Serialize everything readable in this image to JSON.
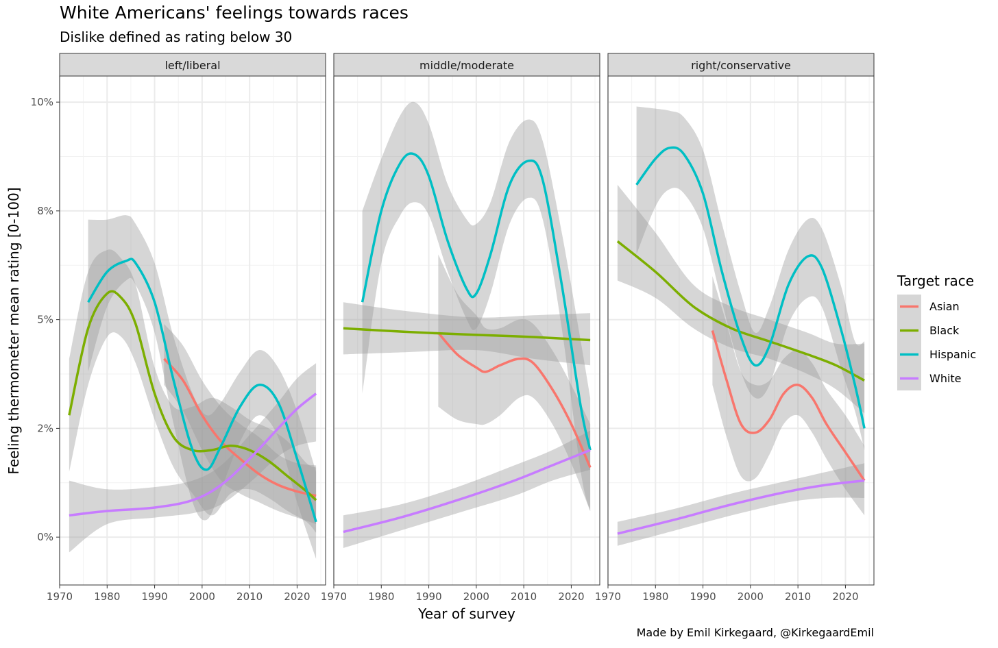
{
  "title": "White Americans' feelings towards races",
  "subtitle": "Dislike defined as rating below 30",
  "caption": "Made by Emil Kirkegaard, @KirkegaardEmil",
  "chart_data": {
    "type": "line",
    "xlabel": "Year of survey",
    "ylabel": "Feeling thermometer mean rating [0-100]",
    "xlim": [
      1970,
      2026
    ],
    "ylim": [
      -1.1,
      10.6
    ],
    "x_ticks": [
      "1970",
      "1980",
      "1990",
      "2000",
      "2010",
      "2020"
    ],
    "y_ticks": [
      "0%",
      "2%",
      "5%",
      "8%",
      "10%"
    ],
    "y_tick_values": [
      0,
      2.5,
      5,
      7.5,
      10
    ],
    "grid": true,
    "legend": {
      "title": "Target race",
      "placement": "right"
    },
    "colors": {
      "Asian": "#F8766D",
      "Black": "#7CAE00",
      "Hispanic": "#00BFC4",
      "White": "#C77CFF"
    },
    "panels": [
      {
        "label": "left/liberal",
        "series": [
          {
            "name": "Asian",
            "x": [
              1992,
              1996,
              2000,
              2004,
              2008,
              2012,
              2016,
              2020,
              2024
            ],
            "y": [
              4.1,
              3.6,
              2.8,
              2.2,
              1.8,
              1.45,
              1.2,
              1.05,
              0.95
            ],
            "lo": [
              3.5,
              2.9,
              2.0,
              1.3,
              1.0,
              0.8,
              0.6,
              0.45,
              0.3
            ],
            "hi": [
              4.9,
              4.4,
              3.6,
              3.0,
              2.6,
              2.3,
              1.9,
              1.7,
              1.65
            ]
          },
          {
            "name": "Black",
            "x": [
              1972,
              1976,
              1980,
              1983,
              1986,
              1990,
              1994,
              1998,
              2002,
              2006,
              2010,
              2014,
              2018,
              2022,
              2024
            ],
            "y": [
              2.8,
              4.8,
              5.6,
              5.5,
              4.9,
              3.3,
              2.3,
              2.0,
              2.0,
              2.1,
              2.0,
              1.75,
              1.4,
              1.05,
              0.85
            ],
            "lo": [
              1.5,
              3.5,
              4.6,
              4.6,
              4.0,
              2.7,
              1.6,
              1.0,
              0.5,
              1.0,
              1.1,
              0.9,
              0.6,
              0.35,
              0.1
            ],
            "hi": [
              4.1,
              6.1,
              6.6,
              6.4,
              5.8,
              3.9,
              3.0,
              3.0,
              3.2,
              3.0,
              2.7,
              2.5,
              2.2,
              1.7,
              1.6
            ]
          },
          {
            "name": "Hispanic",
            "x": [
              1976,
              1980,
              1984,
              1986,
              1990,
              1994,
              1998,
              2001,
              2004,
              2008,
              2012,
              2016,
              2020,
              2024
            ],
            "y": [
              5.4,
              6.1,
              6.35,
              6.3,
              5.4,
              3.6,
              2.0,
              1.55,
              2.1,
              3.0,
              3.5,
              3.1,
              1.8,
              0.35
            ],
            "lo": [
              3.8,
              5.3,
              5.9,
              5.8,
              4.7,
              2.6,
              0.8,
              0.4,
              1.1,
              2.2,
              2.8,
              2.3,
              0.8,
              -0.5
            ],
            "hi": [
              7.3,
              7.3,
              7.4,
              7.2,
              6.3,
              4.6,
              3.3,
              2.8,
              3.1,
              3.8,
              4.3,
              3.9,
              2.9,
              1.5
            ]
          },
          {
            "name": "White",
            "x": [
              1972,
              1980,
              1990,
              1998,
              2004,
              2010,
              2016,
              2020,
              2024
            ],
            "y": [
              0.5,
              0.6,
              0.68,
              0.85,
              1.2,
              1.8,
              2.5,
              2.95,
              3.3
            ],
            "lo": [
              -0.35,
              0.3,
              0.45,
              0.55,
              0.75,
              1.25,
              1.85,
              2.1,
              2.2
            ],
            "hi": [
              1.3,
              1.1,
              1.15,
              1.3,
              1.65,
              2.35,
              3.1,
              3.65,
              4.0
            ]
          }
        ]
      },
      {
        "label": "middle/moderate",
        "series": [
          {
            "name": "Asian",
            "x": [
              1992,
              1996,
              2000,
              2002,
              2005,
              2009,
              2012,
              2016,
              2020,
              2024
            ],
            "y": [
              4.7,
              4.2,
              3.9,
              3.8,
              3.95,
              4.1,
              4.0,
              3.4,
              2.6,
              1.6
            ],
            "lo": [
              3.0,
              2.7,
              2.6,
              2.6,
              2.8,
              3.2,
              3.2,
              2.6,
              1.7,
              0.6
            ],
            "hi": [
              6.5,
              5.6,
              5.1,
              4.8,
              4.8,
              5.0,
              4.9,
              4.3,
              3.5,
              2.6
            ]
          },
          {
            "name": "Black",
            "x": [
              1972,
              1985,
              2000,
              2012,
              2024
            ],
            "y": [
              4.8,
              4.72,
              4.65,
              4.6,
              4.53
            ],
            "lo": [
              4.2,
              4.25,
              4.3,
              4.1,
              3.95
            ],
            "hi": [
              5.4,
              5.2,
              5.05,
              5.1,
              5.15
            ]
          },
          {
            "name": "Hispanic",
            "x": [
              1976,
              1980,
              1984,
              1987,
              1990,
              1994,
              1998,
              2000,
              2003,
              2007,
              2011,
              2014,
              2018,
              2022,
              2024
            ],
            "y": [
              5.4,
              7.5,
              8.6,
              8.8,
              8.3,
              6.8,
              5.7,
              5.6,
              6.5,
              8.1,
              8.65,
              8.2,
              5.8,
              3.0,
              2.0
            ],
            "lo": [
              3.3,
              6.3,
              7.4,
              7.7,
              7.4,
              6.1,
              5.0,
              4.8,
              5.6,
              7.2,
              7.8,
              7.3,
              4.8,
              1.5,
              0.6
            ],
            "hi": [
              7.5,
              8.7,
              9.7,
              10.0,
              9.5,
              8.1,
              7.3,
              7.2,
              7.7,
              9.1,
              9.6,
              9.1,
              7.0,
              4.5,
              3.2
            ]
          },
          {
            "name": "White",
            "x": [
              1972,
              1984,
              1996,
              2008,
              2016,
              2024
            ],
            "y": [
              0.12,
              0.45,
              0.85,
              1.3,
              1.65,
              2.0
            ],
            "lo": [
              -0.25,
              0.15,
              0.55,
              0.95,
              1.3,
              1.55
            ],
            "hi": [
              0.5,
              0.75,
              1.15,
              1.65,
              2.0,
              2.45
            ]
          }
        ]
      },
      {
        "label": "right/conservative",
        "series": [
          {
            "name": "Asian",
            "x": [
              1992,
              1995,
              1998,
              2001,
              2004,
              2007,
              2010,
              2013,
              2016,
              2020,
              2024
            ],
            "y": [
              4.75,
              3.6,
              2.6,
              2.4,
              2.7,
              3.3,
              3.5,
              3.2,
              2.6,
              1.95,
              1.3
            ],
            "lo": [
              3.5,
              2.3,
              1.4,
              1.35,
              1.9,
              2.6,
              2.8,
              2.4,
              1.8,
              1.1,
              0.5
            ],
            "hi": [
              6.0,
              4.9,
              3.8,
              3.5,
              3.6,
              4.1,
              4.3,
              4.0,
              3.4,
              2.8,
              2.1
            ]
          },
          {
            "name": "Black",
            "x": [
              1972,
              1980,
              1988,
              1996,
              2004,
              2012,
              2018,
              2024
            ],
            "y": [
              6.8,
              6.1,
              5.3,
              4.8,
              4.5,
              4.2,
              3.95,
              3.6
            ],
            "lo": [
              5.9,
              5.5,
              4.8,
              4.35,
              4.1,
              3.75,
              3.4,
              2.85
            ],
            "hi": [
              8.1,
              7.0,
              5.8,
              5.3,
              5.0,
              4.7,
              4.45,
              4.45
            ]
          },
          {
            "name": "Hispanic",
            "x": [
              1976,
              1980,
              1983,
              1986,
              1990,
              1994,
              1998,
              2001,
              2004,
              2008,
              2012,
              2015,
              2019,
              2022,
              2024
            ],
            "y": [
              8.1,
              8.7,
              8.95,
              8.8,
              7.9,
              6.1,
              4.6,
              3.95,
              4.4,
              5.8,
              6.45,
              6.2,
              4.8,
              3.5,
              2.5
            ],
            "lo": [
              6.5,
              7.6,
              8.0,
              7.9,
              7.1,
              5.4,
              3.8,
              3.2,
              3.5,
              4.9,
              5.5,
              5.3,
              3.9,
              2.9,
              2.0
            ],
            "hi": [
              9.9,
              9.85,
              9.8,
              9.65,
              8.9,
              7.2,
              5.6,
              4.7,
              5.3,
              6.6,
              7.3,
              7.1,
              5.8,
              4.5,
              4.5
            ]
          },
          {
            "name": "White",
            "x": [
              1972,
              1984,
              1996,
              2008,
              2016,
              2024
            ],
            "y": [
              0.08,
              0.4,
              0.75,
              1.05,
              1.2,
              1.3
            ],
            "lo": [
              -0.2,
              0.15,
              0.5,
              0.8,
              0.9,
              0.9
            ],
            "hi": [
              0.35,
              0.65,
              1.0,
              1.3,
              1.5,
              1.7
            ]
          }
        ]
      }
    ]
  }
}
